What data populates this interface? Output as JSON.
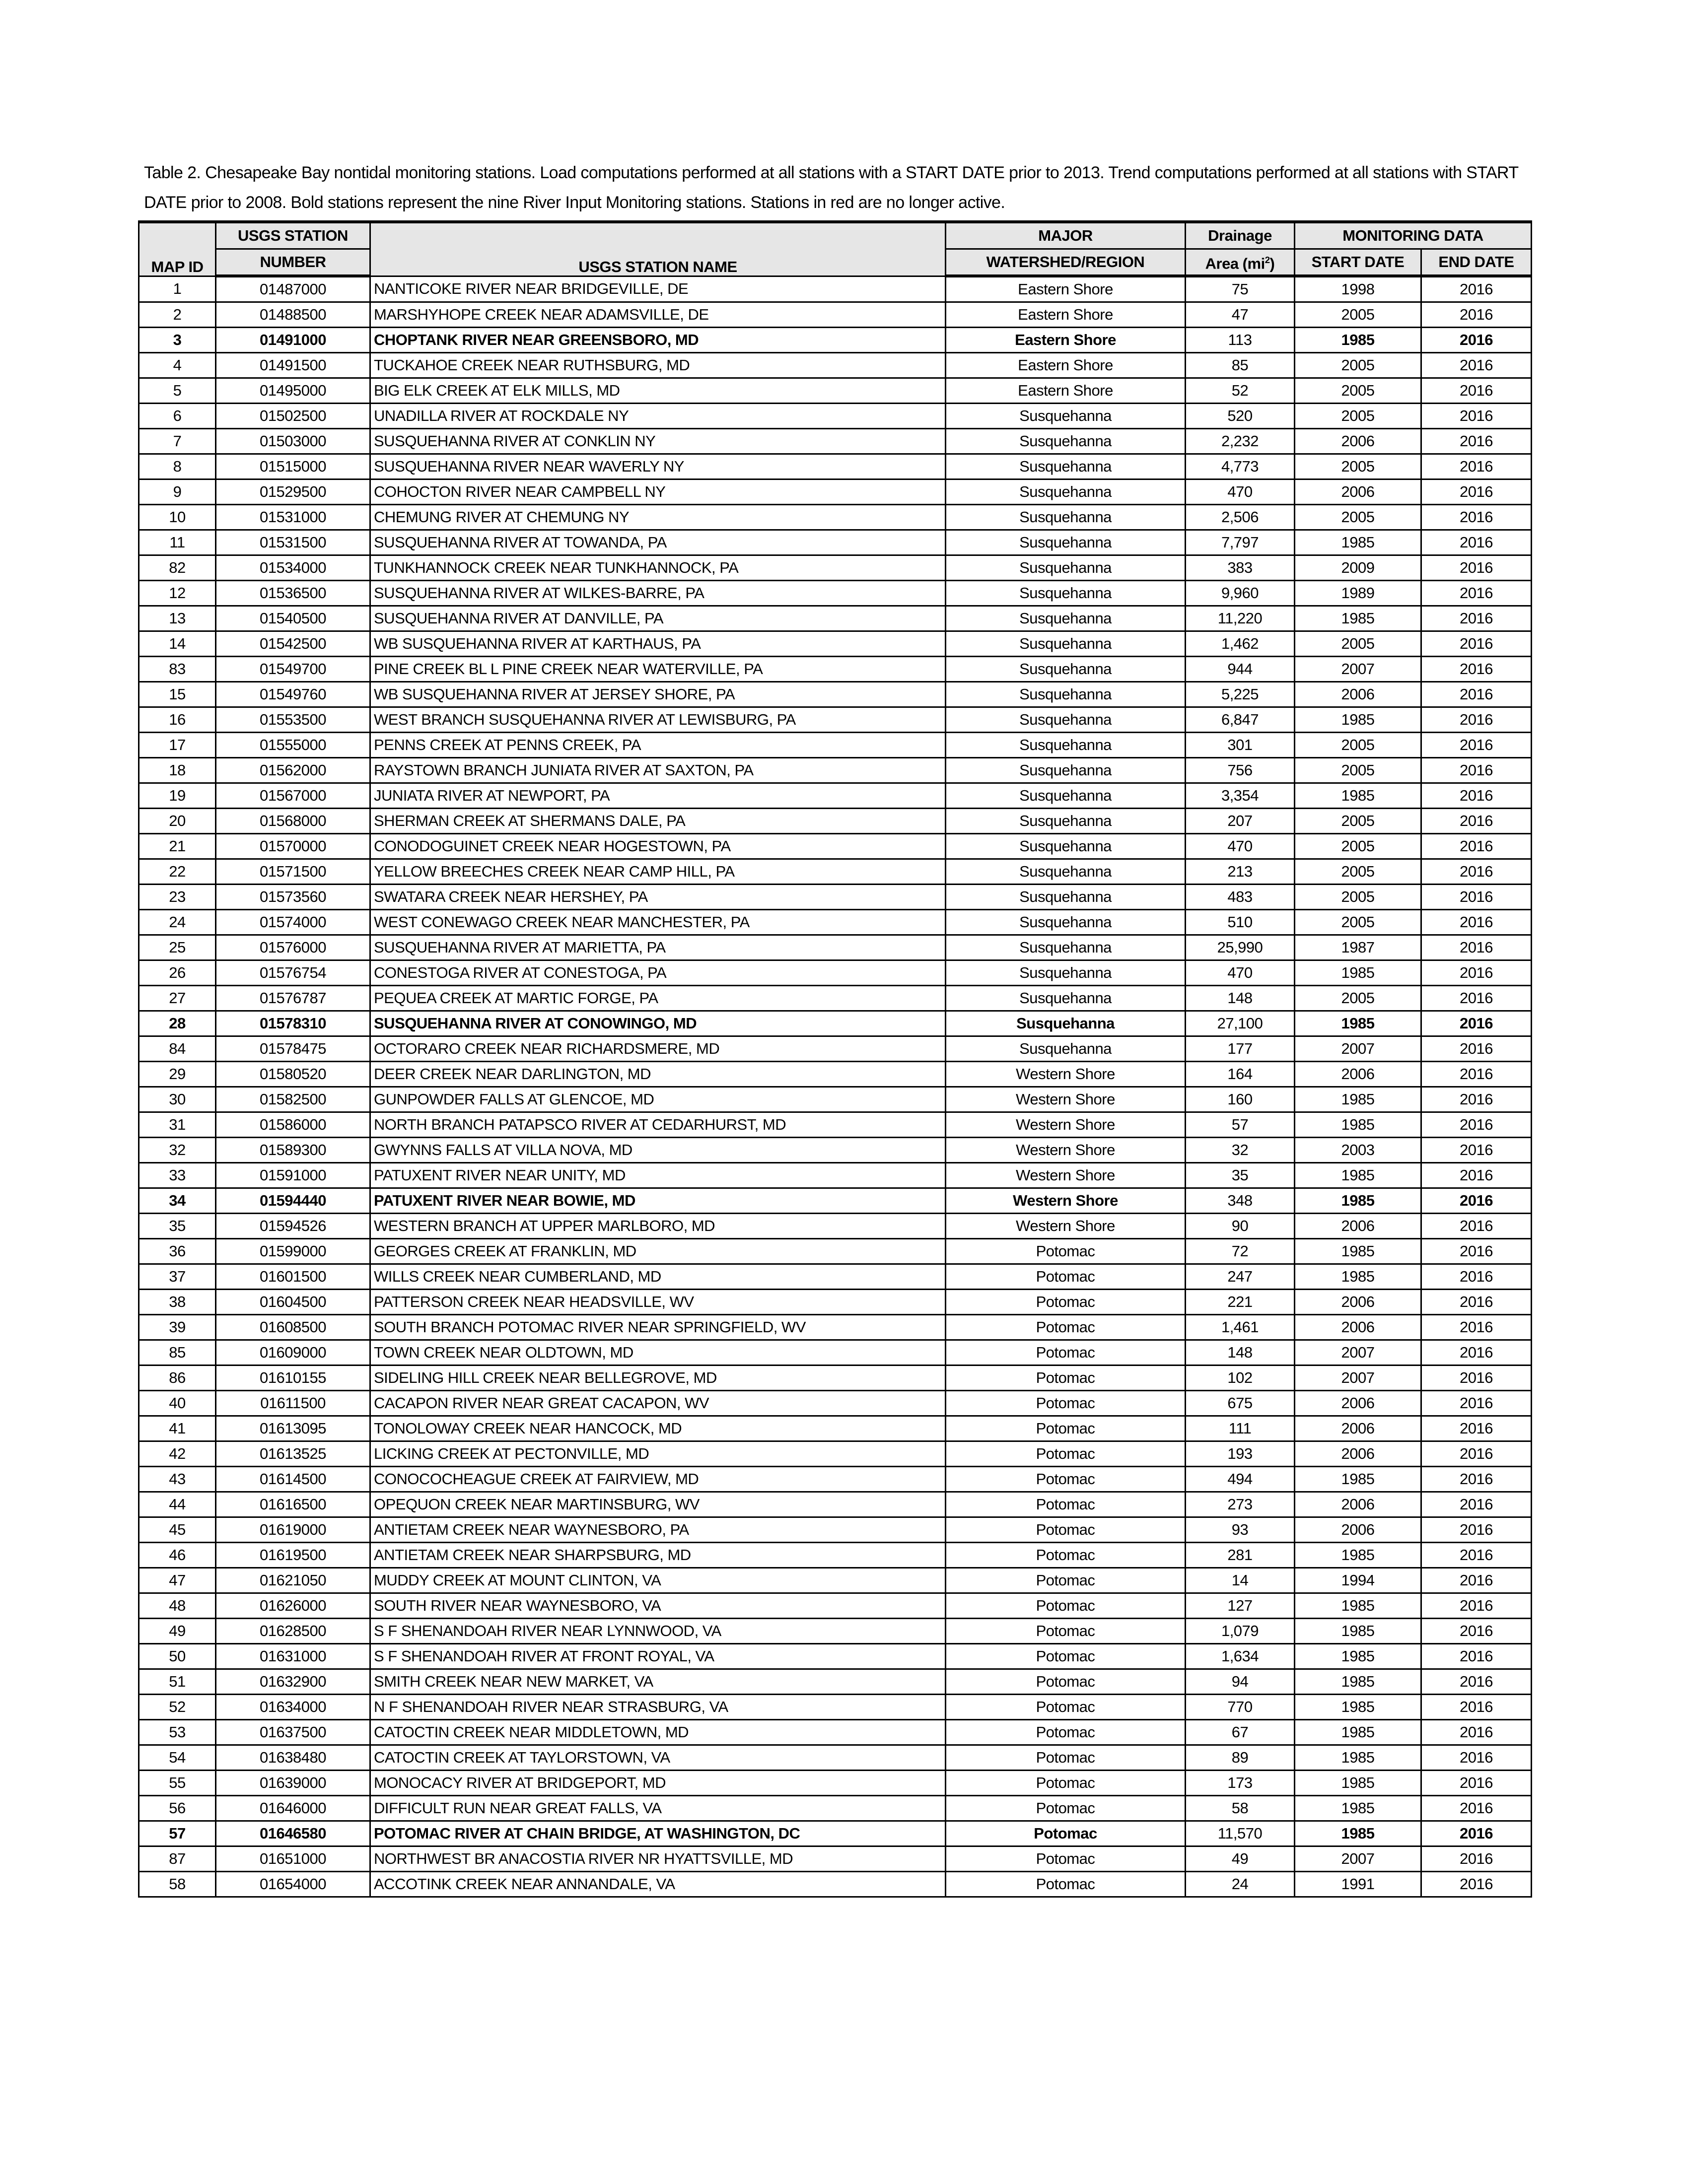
{
  "caption": "Table 2. Chesapeake Bay nontidal monitoring stations.  Load computations performed at all stations with a START DATE prior to 2013.  Trend computations performed at all stations with START DATE prior to 2008.  Bold stations represent the nine River Input Monitoring stations.  Stations in red are no longer active.",
  "headers": {
    "map_id": "MAP ID",
    "station_number_1": "USGS STATION",
    "station_number_2": "NUMBER",
    "station_name": "USGS STATION NAME",
    "watershed_1": "MAJOR",
    "watershed_2": "WATERSHED/REGION",
    "drainage_1": "Drainage",
    "drainage_2": "Area (mi",
    "drainage_sup": "2",
    "drainage_3": ")",
    "monitoring": "MONITORING DATA",
    "start": "START DATE",
    "end": "END DATE"
  },
  "rows": [
    [
      "1",
      "01487000",
      "NANTICOKE RIVER NEAR BRIDGEVILLE, DE",
      "Eastern Shore",
      "75",
      "1998",
      "2016",
      false
    ],
    [
      "2",
      "01488500",
      "MARSHYHOPE CREEK NEAR ADAMSVILLE, DE",
      "Eastern Shore",
      "47",
      "2005",
      "2016",
      false
    ],
    [
      "3",
      "01491000",
      "CHOPTANK RIVER NEAR GREENSBORO, MD",
      "Eastern Shore",
      "113",
      "1985",
      "2016",
      true
    ],
    [
      "4",
      "01491500",
      "TUCKAHOE CREEK NEAR RUTHSBURG, MD",
      "Eastern Shore",
      "85",
      "2005",
      "2016",
      false
    ],
    [
      "5",
      "01495000",
      "BIG ELK CREEK AT ELK MILLS, MD",
      "Eastern Shore",
      "52",
      "2005",
      "2016",
      false
    ],
    [
      "6",
      "01502500",
      "UNADILLA RIVER AT ROCKDALE NY",
      "Susquehanna",
      "520",
      "2005",
      "2016",
      false
    ],
    [
      "7",
      "01503000",
      "SUSQUEHANNA RIVER AT CONKLIN NY",
      "Susquehanna",
      "2,232",
      "2006",
      "2016",
      false
    ],
    [
      "8",
      "01515000",
      "SUSQUEHANNA RIVER NEAR WAVERLY NY",
      "Susquehanna",
      "4,773",
      "2005",
      "2016",
      false
    ],
    [
      "9",
      "01529500",
      "COHOCTON RIVER NEAR CAMPBELL NY",
      "Susquehanna",
      "470",
      "2006",
      "2016",
      false
    ],
    [
      "10",
      "01531000",
      "CHEMUNG RIVER AT CHEMUNG NY",
      "Susquehanna",
      "2,506",
      "2005",
      "2016",
      false
    ],
    [
      "11",
      "01531500",
      "SUSQUEHANNA RIVER AT TOWANDA, PA",
      "Susquehanna",
      "7,797",
      "1985",
      "2016",
      false
    ],
    [
      "82",
      "01534000",
      "TUNKHANNOCK CREEK NEAR TUNKHANNOCK, PA",
      "Susquehanna",
      "383",
      "2009",
      "2016",
      false
    ],
    [
      "12",
      "01536500",
      "SUSQUEHANNA RIVER AT WILKES-BARRE, PA",
      "Susquehanna",
      "9,960",
      "1989",
      "2016",
      false
    ],
    [
      "13",
      "01540500",
      "SUSQUEHANNA RIVER AT DANVILLE, PA",
      "Susquehanna",
      "11,220",
      "1985",
      "2016",
      false
    ],
    [
      "14",
      "01542500",
      "WB SUSQUEHANNA RIVER AT KARTHAUS, PA",
      "Susquehanna",
      "1,462",
      "2005",
      "2016",
      false
    ],
    [
      "83",
      "01549700",
      "PINE CREEK BL L PINE CREEK NEAR WATERVILLE, PA",
      "Susquehanna",
      "944",
      "2007",
      "2016",
      false
    ],
    [
      "15",
      "01549760",
      "WB SUSQUEHANNA RIVER AT JERSEY SHORE, PA",
      "Susquehanna",
      "5,225",
      "2006",
      "2016",
      false
    ],
    [
      "16",
      "01553500",
      "WEST BRANCH SUSQUEHANNA RIVER AT LEWISBURG, PA",
      "Susquehanna",
      "6,847",
      "1985",
      "2016",
      false
    ],
    [
      "17",
      "01555000",
      "PENNS CREEK AT PENNS CREEK, PA",
      "Susquehanna",
      "301",
      "2005",
      "2016",
      false
    ],
    [
      "18",
      "01562000",
      "RAYSTOWN BRANCH JUNIATA RIVER AT SAXTON, PA",
      "Susquehanna",
      "756",
      "2005",
      "2016",
      false
    ],
    [
      "19",
      "01567000",
      "JUNIATA RIVER AT NEWPORT, PA",
      "Susquehanna",
      "3,354",
      "1985",
      "2016",
      false
    ],
    [
      "20",
      "01568000",
      "SHERMAN CREEK AT SHERMANS DALE, PA",
      "Susquehanna",
      "207",
      "2005",
      "2016",
      false
    ],
    [
      "21",
      "01570000",
      "CONODOGUINET CREEK NEAR HOGESTOWN, PA",
      "Susquehanna",
      "470",
      "2005",
      "2016",
      false
    ],
    [
      "22",
      "01571500",
      "YELLOW BREECHES CREEK NEAR CAMP HILL, PA",
      "Susquehanna",
      "213",
      "2005",
      "2016",
      false
    ],
    [
      "23",
      "01573560",
      "SWATARA CREEK NEAR HERSHEY, PA",
      "Susquehanna",
      "483",
      "2005",
      "2016",
      false
    ],
    [
      "24",
      "01574000",
      "WEST CONEWAGO CREEK NEAR MANCHESTER, PA",
      "Susquehanna",
      "510",
      "2005",
      "2016",
      false
    ],
    [
      "25",
      "01576000",
      "SUSQUEHANNA RIVER AT MARIETTA, PA",
      "Susquehanna",
      "25,990",
      "1987",
      "2016",
      false
    ],
    [
      "26",
      "01576754",
      "CONESTOGA RIVER AT CONESTOGA, PA",
      "Susquehanna",
      "470",
      "1985",
      "2016",
      false
    ],
    [
      "27",
      "01576787",
      "PEQUEA CREEK AT MARTIC FORGE, PA",
      "Susquehanna",
      "148",
      "2005",
      "2016",
      false
    ],
    [
      "28",
      "01578310",
      "SUSQUEHANNA RIVER AT CONOWINGO, MD",
      "Susquehanna",
      "27,100",
      "1985",
      "2016",
      true
    ],
    [
      "84",
      "01578475",
      "OCTORARO CREEK NEAR RICHARDSMERE, MD",
      "Susquehanna",
      "177",
      "2007",
      "2016",
      false
    ],
    [
      "29",
      "01580520",
      "DEER CREEK NEAR DARLINGTON, MD",
      "Western Shore",
      "164",
      "2006",
      "2016",
      false
    ],
    [
      "30",
      "01582500",
      "GUNPOWDER FALLS AT GLENCOE, MD",
      "Western Shore",
      "160",
      "1985",
      "2016",
      false
    ],
    [
      "31",
      "01586000",
      "NORTH BRANCH PATAPSCO RIVER AT CEDARHURST, MD",
      "Western Shore",
      "57",
      "1985",
      "2016",
      false
    ],
    [
      "32",
      "01589300",
      "GWYNNS FALLS AT VILLA NOVA, MD",
      "Western Shore",
      "32",
      "2003",
      "2016",
      false
    ],
    [
      "33",
      "01591000",
      "PATUXENT RIVER NEAR UNITY, MD",
      "Western Shore",
      "35",
      "1985",
      "2016",
      false
    ],
    [
      "34",
      "01594440",
      "PATUXENT RIVER NEAR BOWIE, MD",
      "Western Shore",
      "348",
      "1985",
      "2016",
      true
    ],
    [
      "35",
      "01594526",
      "WESTERN BRANCH AT UPPER MARLBORO, MD",
      "Western Shore",
      "90",
      "2006",
      "2016",
      false
    ],
    [
      "36",
      "01599000",
      "GEORGES CREEK AT FRANKLIN, MD",
      "Potomac",
      "72",
      "1985",
      "2016",
      false
    ],
    [
      "37",
      "01601500",
      "WILLS CREEK NEAR CUMBERLAND, MD",
      "Potomac",
      "247",
      "1985",
      "2016",
      false
    ],
    [
      "38",
      "01604500",
      "PATTERSON CREEK NEAR HEADSVILLE, WV",
      "Potomac",
      "221",
      "2006",
      "2016",
      false
    ],
    [
      "39",
      "01608500",
      "SOUTH BRANCH POTOMAC RIVER NEAR SPRINGFIELD, WV",
      "Potomac",
      "1,461",
      "2006",
      "2016",
      false
    ],
    [
      "85",
      "01609000",
      "TOWN CREEK NEAR OLDTOWN, MD",
      "Potomac",
      "148",
      "2007",
      "2016",
      false
    ],
    [
      "86",
      "01610155",
      "SIDELING HILL CREEK NEAR BELLEGROVE, MD",
      "Potomac",
      "102",
      "2007",
      "2016",
      false
    ],
    [
      "40",
      "01611500",
      "CACAPON RIVER NEAR GREAT CACAPON, WV",
      "Potomac",
      "675",
      "2006",
      "2016",
      false
    ],
    [
      "41",
      "01613095",
      "TONOLOWAY CREEK NEAR HANCOCK, MD",
      "Potomac",
      "111",
      "2006",
      "2016",
      false
    ],
    [
      "42",
      "01613525",
      "LICKING CREEK AT PECTONVILLE, MD",
      "Potomac",
      "193",
      "2006",
      "2016",
      false
    ],
    [
      "43",
      "01614500",
      "CONOCOCHEAGUE CREEK AT FAIRVIEW, MD",
      "Potomac",
      "494",
      "1985",
      "2016",
      false
    ],
    [
      "44",
      "01616500",
      "OPEQUON CREEK NEAR MARTINSBURG, WV",
      "Potomac",
      "273",
      "2006",
      "2016",
      false
    ],
    [
      "45",
      "01619000",
      "ANTIETAM CREEK NEAR WAYNESBORO, PA",
      "Potomac",
      "93",
      "2006",
      "2016",
      false
    ],
    [
      "46",
      "01619500",
      "ANTIETAM CREEK NEAR SHARPSBURG, MD",
      "Potomac",
      "281",
      "1985",
      "2016",
      false
    ],
    [
      "47",
      "01621050",
      "MUDDY CREEK AT MOUNT CLINTON, VA",
      "Potomac",
      "14",
      "1994",
      "2016",
      false
    ],
    [
      "48",
      "01626000",
      "SOUTH RIVER NEAR WAYNESBORO, VA",
      "Potomac",
      "127",
      "1985",
      "2016",
      false
    ],
    [
      "49",
      "01628500",
      "S F SHENANDOAH RIVER NEAR LYNNWOOD, VA",
      "Potomac",
      "1,079",
      "1985",
      "2016",
      false
    ],
    [
      "50",
      "01631000",
      "S F SHENANDOAH RIVER AT FRONT ROYAL, VA",
      "Potomac",
      "1,634",
      "1985",
      "2016",
      false
    ],
    [
      "51",
      "01632900",
      "SMITH CREEK NEAR NEW MARKET, VA",
      "Potomac",
      "94",
      "1985",
      "2016",
      false
    ],
    [
      "52",
      "01634000",
      "N F SHENANDOAH RIVER NEAR STRASBURG, VA",
      "Potomac",
      "770",
      "1985",
      "2016",
      false
    ],
    [
      "53",
      "01637500",
      "CATOCTIN CREEK NEAR MIDDLETOWN, MD",
      "Potomac",
      "67",
      "1985",
      "2016",
      false
    ],
    [
      "54",
      "01638480",
      "CATOCTIN CREEK AT TAYLORSTOWN, VA",
      "Potomac",
      "89",
      "1985",
      "2016",
      false
    ],
    [
      "55",
      "01639000",
      "MONOCACY RIVER AT BRIDGEPORT, MD",
      "Potomac",
      "173",
      "1985",
      "2016",
      false
    ],
    [
      "56",
      "01646000",
      "DIFFICULT RUN NEAR GREAT FALLS, VA",
      "Potomac",
      "58",
      "1985",
      "2016",
      false
    ],
    [
      "57",
      "01646580",
      "POTOMAC RIVER AT CHAIN BRIDGE, AT WASHINGTON, DC",
      "Potomac",
      "11,570",
      "1985",
      "2016",
      true
    ],
    [
      "87",
      "01651000",
      "NORTHWEST BR ANACOSTIA RIVER NR HYATTSVILLE, MD",
      "Potomac",
      "49",
      "2007",
      "2016",
      false
    ],
    [
      "58",
      "01654000",
      "ACCOTINK CREEK NEAR ANNANDALE, VA",
      "Potomac",
      "24",
      "1991",
      "2016",
      false
    ]
  ],
  "colors": {
    "header_bg": "#e6e6e6",
    "text": "#000000",
    "border": "#000000"
  }
}
